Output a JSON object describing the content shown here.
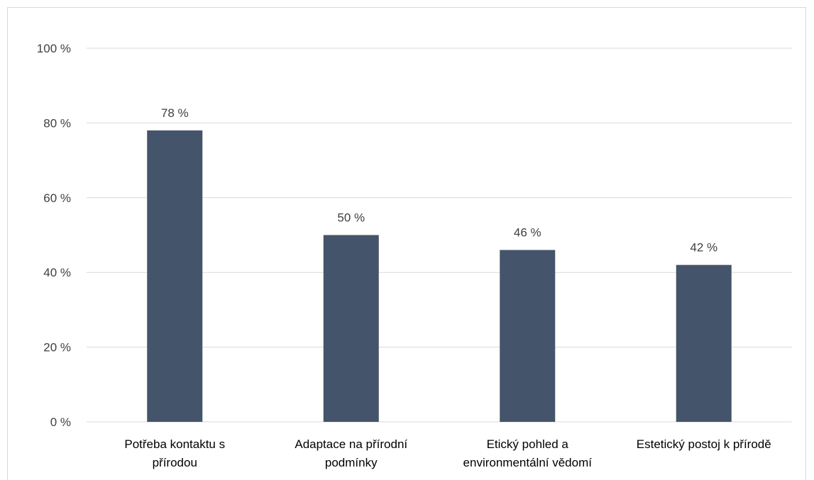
{
  "chart_data": {
    "type": "bar",
    "categories": [
      [
        "Potřeba kontaktu s",
        "přírodou"
      ],
      [
        "Adaptace na přírodní",
        "podmínky"
      ],
      [
        "Etický pohled a",
        "environmentální vědomí"
      ],
      [
        "Estetický postoj k přírodě"
      ]
    ],
    "values": [
      78,
      50,
      46,
      42
    ],
    "data_labels": [
      "78 %",
      "50 %",
      "46 %",
      "42 %"
    ],
    "y_ticks": [
      0,
      20,
      40,
      60,
      80,
      100
    ],
    "y_tick_labels": [
      "0 %",
      "20 %",
      "40 %",
      "60 %",
      "80 %",
      "100 %"
    ],
    "ylim": [
      0,
      100
    ],
    "grid": true,
    "bar_color": "#44546a",
    "grid_color": "#d9d9d9",
    "title": "",
    "xlabel": "",
    "ylabel": ""
  }
}
